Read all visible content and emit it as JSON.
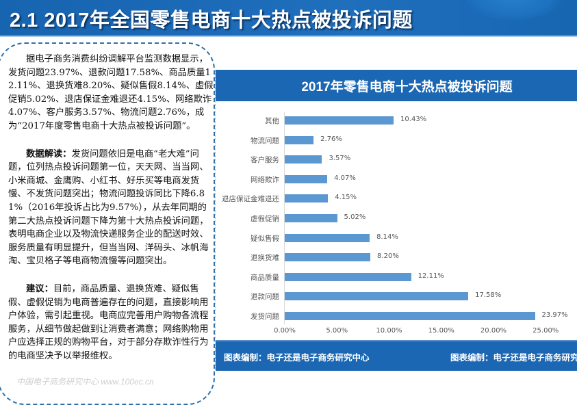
{
  "header": {
    "title": "2.1  2017年全国零售电商十大热点被投诉问题"
  },
  "text": {
    "para1": "据电子商务消费纠纷调解平台监测数据显示，发货问题23.97%、退款问题17.58%、商品质量12.11%、退换货难8.20%、疑似售假8.14%、虚假促销5.02%、退店保证金难退还4.15%、网络欺诈4.07%、客户服务3.57%、物流问题2.76%，成为“2017年度零售电商十大热点被投诉问题”。",
    "para2_lead": "数据解读：",
    "para2": "发货问题依旧是电商“老大难”问题，位列热点投诉问题第一位，天天网、当当网、小米商城、金鹰购、小红书、好乐买等电商发货慢、不发货问题突出；物流问题投诉同比下降6.81%（2016年投诉占比为9.57%），从去年同期的第二大热点投诉问题下降为第十大热点投诉问题，表明电商企业以及物流快递服务企业的配送时效、服务质量有明显提升，但当当网、洋码头、冰帆海淘、宝贝格子等电商物流慢等问题突出。",
    "para3_lead": "建议：",
    "para3": "目前，商品质量、退换货难、疑似售假、虚假促销为电商普遍存在的问题，直接影响用户体验，需引起重视。电商应完善用户购物各流程服务，从细节做起做到让消费者满意；网络购物用户应选择正规的购物平台，对于部分存欺诈性行为的电商坚决予以举报维权。",
    "watermark": "中国电子商务研究中心 www.100ec.cn"
  },
  "chart": {
    "footer_left": "图表编制：电子还是电子商务研究中心",
    "footer_right": "图表编制：电子还是电子商务研究"
  },
  "chart_data": {
    "type": "bar",
    "orientation": "horizontal",
    "title": "2017年零售电商十大热点被投诉问题",
    "categories": [
      "其他",
      "物流问题",
      "客户服务",
      "网络欺诈",
      "退店保证金难退还",
      "虚假促销",
      "疑似售假",
      "退换货难",
      "商品质量",
      "退款问题",
      "发货问题"
    ],
    "values": [
      10.43,
      2.76,
      3.57,
      4.07,
      4.15,
      5.02,
      8.14,
      8.2,
      12.11,
      17.58,
      23.97
    ],
    "value_labels": [
      "10.43%",
      "2.76%",
      "3.57%",
      "4.07%",
      "4.15%",
      "5.02%",
      "8.14%",
      "8.20%",
      "12.11%",
      "17.58%",
      "23.97%"
    ],
    "xlabel": "",
    "ylabel": "",
    "xlim": [
      0,
      25
    ],
    "x_ticks": [
      "0.00%",
      "5.00%",
      "10.00%",
      "15.00%",
      "20.00%",
      "25.00%"
    ],
    "grid": false,
    "bar_color": "#5b97d1",
    "header_color": "#1b67b3"
  }
}
